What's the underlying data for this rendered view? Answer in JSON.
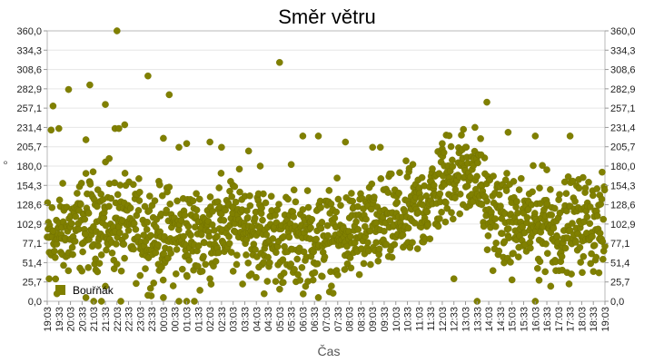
{
  "chart_data": {
    "type": "scatter",
    "title": "Směr větru",
    "xlabel": "Čas",
    "ylabel": "°",
    "ylim": [
      0,
      360
    ],
    "y_ticks": [
      "0,0",
      "25,7",
      "51,4",
      "77,1",
      "102,9",
      "128,6",
      "154,3",
      "180,0",
      "205,7",
      "231,4",
      "257,1",
      "282,9",
      "308,6",
      "334,3",
      "360,0"
    ],
    "x_ticks": [
      "19:03",
      "19:33",
      "20:03",
      "20:33",
      "21:03",
      "21:33",
      "22:03",
      "22:33",
      "23:03",
      "23:33",
      "00:03",
      "00:33",
      "01:03",
      "01:33",
      "02:03",
      "02:33",
      "03:03",
      "03:33",
      "04:03",
      "04:33",
      "05:03",
      "05:33",
      "06:03",
      "06:33",
      "07:03",
      "07:33",
      "08:03",
      "08:33",
      "09:03",
      "09:33",
      "10:03",
      "10:33",
      "11:03",
      "11:33",
      "12:03",
      "12:33",
      "13:03",
      "13:33",
      "14:03",
      "14:33",
      "15:03",
      "15:33",
      "16:03",
      "16:33",
      "17:03",
      "17:33",
      "18:03",
      "18:33",
      "19:03"
    ],
    "x_unit": "minutes from 19:03",
    "x_range": [
      0,
      1440
    ],
    "grid": true,
    "legend_position": "bottom-left",
    "series": [
      {
        "name": "Bouřňák",
        "color": "#808000",
        "trend": [
          [
            0,
            80
          ],
          [
            60,
            95
          ],
          [
            120,
            110
          ],
          [
            180,
            100
          ],
          [
            240,
            95
          ],
          [
            300,
            90
          ],
          [
            360,
            88
          ],
          [
            420,
            95
          ],
          [
            480,
            105
          ],
          [
            540,
            95
          ],
          [
            600,
            80
          ],
          [
            660,
            82
          ],
          [
            720,
            85
          ],
          [
            780,
            88
          ],
          [
            840,
            95
          ],
          [
            900,
            105
          ],
          [
            960,
            120
          ],
          [
            990,
            135
          ],
          [
            1020,
            155
          ],
          [
            1050,
            170
          ],
          [
            1080,
            175
          ],
          [
            1110,
            170
          ],
          [
            1125,
            140
          ],
          [
            1140,
            120
          ],
          [
            1170,
            110
          ],
          [
            1200,
            100
          ],
          [
            1260,
            105
          ],
          [
            1290,
            110
          ],
          [
            1320,
            95
          ],
          [
            1350,
            100
          ],
          [
            1380,
            105
          ],
          [
            1410,
            105
          ],
          [
            1440,
            95
          ]
        ],
        "spread": 30,
        "count": 1400,
        "outliers": [
          [
            15,
            260
          ],
          [
            10,
            228
          ],
          [
            30,
            230
          ],
          [
            55,
            282
          ],
          [
            100,
            215
          ],
          [
            110,
            288
          ],
          [
            150,
            262
          ],
          [
            160,
            190
          ],
          [
            175,
            230
          ],
          [
            180,
            360
          ],
          [
            185,
            230
          ],
          [
            200,
            235
          ],
          [
            260,
            300
          ],
          [
            300,
            217
          ],
          [
            315,
            275
          ],
          [
            340,
            205
          ],
          [
            360,
            210
          ],
          [
            420,
            212
          ],
          [
            450,
            205
          ],
          [
            520,
            200
          ],
          [
            550,
            180
          ],
          [
            600,
            318
          ],
          [
            630,
            182
          ],
          [
            660,
            220
          ],
          [
            700,
            220
          ],
          [
            770,
            212
          ],
          [
            840,
            205
          ],
          [
            860,
            205
          ],
          [
            1020,
            210
          ],
          [
            1080,
            205
          ],
          [
            1120,
            195
          ],
          [
            1135,
            265
          ],
          [
            1190,
            225
          ],
          [
            1260,
            220
          ],
          [
            1290,
            175
          ],
          [
            1350,
            220
          ],
          [
            5,
            30
          ],
          [
            25,
            10
          ],
          [
            100,
            5
          ],
          [
            120,
            0
          ],
          [
            140,
            0
          ],
          [
            150,
            20
          ],
          [
            190,
            0
          ],
          [
            260,
            8
          ],
          [
            300,
            5
          ],
          [
            340,
            0
          ],
          [
            360,
            0
          ],
          [
            380,
            0
          ],
          [
            400,
            40
          ],
          [
            420,
            30
          ],
          [
            480,
            40
          ],
          [
            560,
            10
          ],
          [
            700,
            5
          ],
          [
            750,
            35
          ],
          [
            1050,
            30
          ],
          [
            1110,
            0
          ],
          [
            1260,
            0
          ],
          [
            1270,
            28
          ],
          [
            1300,
            20
          ]
        ]
      }
    ]
  }
}
